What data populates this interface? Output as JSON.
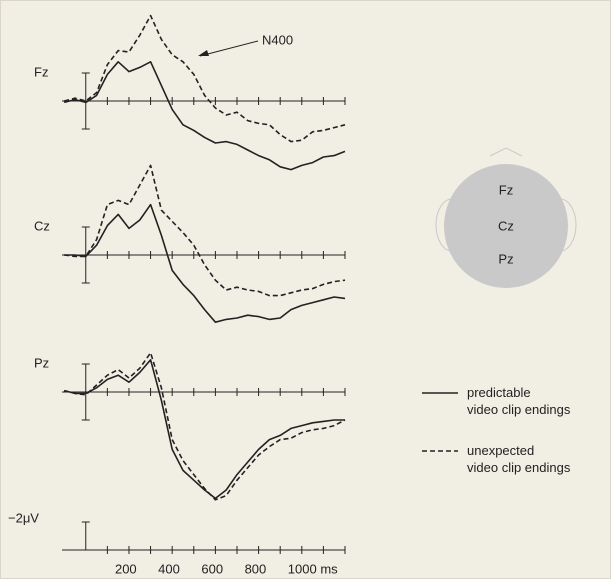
{
  "chart_data": {
    "type": "line",
    "x": [
      -100,
      -50,
      0,
      50,
      100,
      150,
      200,
      250,
      300,
      350,
      400,
      450,
      500,
      550,
      600,
      650,
      700,
      750,
      800,
      850,
      900,
      950,
      1000,
      1050,
      1100,
      1150,
      1200
    ],
    "xlim": [
      -110,
      1200
    ],
    "xticks": [
      200,
      400,
      600,
      800,
      {
        "value": 1000,
        "label": "1000 ms"
      }
    ],
    "xminor_ticks": [
      100,
      300,
      500,
      700,
      900,
      1100,
      1200
    ],
    "series": [
      {
        "name": "predictable\nvideo clip endings",
        "color": "#222222",
        "dashed": false
      },
      {
        "name": "unexpected\nvideo clip endings",
        "color": "#222222",
        "dashed": true
      }
    ],
    "panels": [
      {
        "label": "Fz",
        "ylim": [
          2,
          -2
        ],
        "values": [
          [
            0.1,
            -0.1,
            0.1,
            -0.4,
            -1.9,
            -2.8,
            -2.1,
            -2.4,
            -2.8,
            -1.1,
            0.6,
            1.7,
            2.1,
            2.6,
            3.0,
            2.9,
            3.1,
            3.5,
            3.9,
            4.2,
            4.7,
            4.9,
            4.6,
            4.4,
            4.0,
            3.9,
            3.6
          ],
          [
            0,
            -0.2,
            0,
            -0.6,
            -2.6,
            -3.6,
            -3.5,
            -4.7,
            -6.1,
            -4.4,
            -3.3,
            -2.8,
            -1.9,
            -0.4,
            0.5,
            1.0,
            0.8,
            1.4,
            1.6,
            1.7,
            2.4,
            2.9,
            2.8,
            2.2,
            2.1,
            1.9,
            1.7
          ]
        ]
      },
      {
        "label": "Cz",
        "ylim": [
          2,
          -2
        ],
        "values": [
          [
            0,
            0,
            0.1,
            -0.7,
            -2.1,
            -2.9,
            -1.9,
            -2.5,
            -3.6,
            -1.4,
            1.1,
            2.1,
            2.9,
            3.9,
            4.8,
            4.6,
            4.5,
            4.3,
            4.4,
            4.6,
            4.5,
            3.9,
            3.6,
            3.4,
            3.2,
            3.0,
            3.1
          ],
          [
            0,
            0.1,
            0.1,
            -1.1,
            -3.6,
            -3.9,
            -3.6,
            -5.0,
            -6.4,
            -3.2,
            -2.4,
            -1.6,
            -0.7,
            0.7,
            1.8,
            2.5,
            2.3,
            2.5,
            2.6,
            2.9,
            2.9,
            2.7,
            2.5,
            2.4,
            2.1,
            1.9,
            1.8
          ]
        ]
      },
      {
        "label": "Pz",
        "ylim": [
          2,
          -2
        ],
        "values": [
          [
            -0.1,
            0.1,
            0.1,
            -0.3,
            -0.9,
            -1.2,
            -0.7,
            -1.4,
            -2.3,
            0.6,
            4.1,
            5.6,
            6.3,
            7.0,
            7.6,
            7.0,
            5.9,
            5.0,
            4.1,
            3.4,
            3.1,
            2.6,
            2.4,
            2.2,
            2.1,
            2.0,
            2.0
          ],
          [
            -0.1,
            0.1,
            0.2,
            -0.5,
            -1.2,
            -1.6,
            -1.0,
            -1.7,
            -2.8,
            -0.3,
            3.4,
            4.9,
            5.9,
            6.9,
            7.7,
            7.4,
            6.3,
            5.4,
            4.5,
            3.9,
            3.4,
            3.3,
            2.9,
            2.7,
            2.6,
            2.4,
            2.0
          ]
        ]
      }
    ],
    "calibration": {
      "ylim": [
        0,
        -2
      ],
      "yticks": [
        {
          "value": -2,
          "label": "−2μV"
        }
      ]
    },
    "annotation": "N400",
    "head_labels": [
      "Fz",
      "Cz",
      "Pz"
    ]
  }
}
